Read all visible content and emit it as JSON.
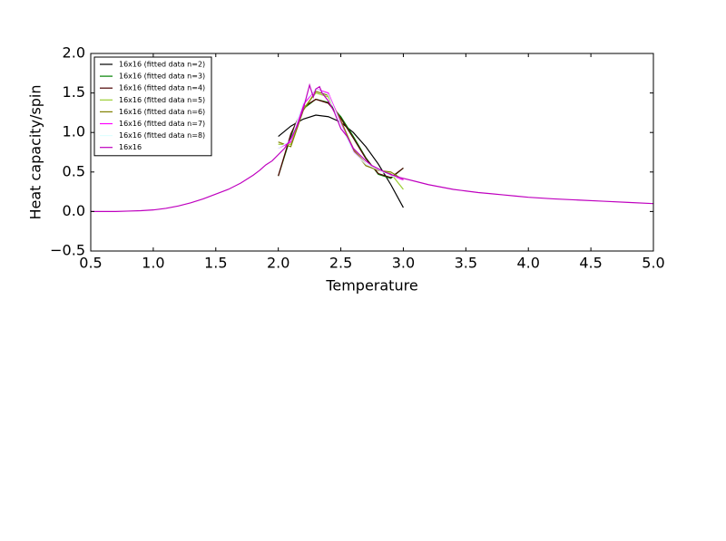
{
  "chart_data": {
    "type": "line",
    "x_label": "Temperature",
    "y_label": "Heat capacity/spin",
    "xlim": [
      0.5,
      5.0
    ],
    "ylim": [
      -0.5,
      2.0
    ],
    "xticks": [
      0.5,
      {
        "value": 1,
        "label": "1.0"
      },
      1.5,
      {
        "value": 2,
        "label": "2.0"
      },
      2.5,
      {
        "value": 3,
        "label": "3.0"
      },
      3.5,
      {
        "value": 4,
        "label": "4.0"
      },
      4.5,
      {
        "value": 5,
        "label": "5.0"
      }
    ],
    "yticks": [
      {
        "value": -0.5,
        "label": "−0.5"
      },
      {
        "value": 0,
        "label": "0.0"
      },
      0.5,
      {
        "value": 1,
        "label": "1.0"
      },
      1.5,
      {
        "value": 2,
        "label": "2.0"
      }
    ],
    "legend": "upper left",
    "series": [
      {
        "name": "16x16 (fitted data n=2)",
        "color": "#000000",
        "x": [
          2.0,
          2.1,
          2.2,
          2.3,
          2.4,
          2.5,
          2.6,
          2.7,
          2.8,
          2.9,
          3.0
        ],
        "values": [
          0.95,
          1.08,
          1.17,
          1.22,
          1.2,
          1.13,
          1.0,
          0.82,
          0.6,
          0.34,
          0.05
        ]
      },
      {
        "name": "16x16 (fitted data n=3)",
        "color": "#008000",
        "x": [
          2.0,
          2.1,
          2.2,
          2.3,
          2.4,
          2.5,
          2.6,
          2.7,
          2.8,
          2.9,
          3.0
        ],
        "values": [
          0.45,
          0.95,
          1.3,
          1.42,
          1.38,
          1.2,
          0.95,
          0.68,
          0.47,
          0.42,
          0.55
        ]
      },
      {
        "name": "16x16 (fitted data n=4)",
        "color": "#4b0000",
        "x": [
          2.0,
          2.1,
          2.2,
          2.3,
          2.4,
          2.5,
          2.6,
          2.7,
          2.8,
          2.9,
          3.0
        ],
        "values": [
          0.45,
          0.98,
          1.32,
          1.42,
          1.37,
          1.18,
          0.93,
          0.67,
          0.48,
          0.43,
          0.55
        ]
      },
      {
        "name": "16x16 (fitted data n=5)",
        "color": "#9acd32",
        "x": [
          2.0,
          2.1,
          2.2,
          2.3,
          2.4,
          2.5,
          2.6,
          2.7,
          2.8,
          2.9,
          3.0
        ],
        "values": [
          0.85,
          0.85,
          1.3,
          1.5,
          1.45,
          1.15,
          0.8,
          0.6,
          0.52,
          0.48,
          0.28
        ]
      },
      {
        "name": "16x16 (fitted data n=6)",
        "color": "#808000",
        "x": [
          2.0,
          2.1,
          2.2,
          2.3,
          2.4,
          2.5,
          2.6,
          2.7,
          2.8,
          2.9,
          3.0
        ],
        "values": [
          0.88,
          0.82,
          1.28,
          1.52,
          1.47,
          1.15,
          0.78,
          0.58,
          0.52,
          0.5,
          0.4
        ]
      },
      {
        "name": "16x16 (fitted data n=7)",
        "color": "#ff00ff",
        "x": [
          2.0,
          2.1,
          2.2,
          2.3,
          2.4,
          2.5,
          2.6,
          2.7,
          2.8,
          2.9,
          3.0
        ],
        "values": [
          0.8,
          0.88,
          1.35,
          1.55,
          1.5,
          1.12,
          0.76,
          0.6,
          0.53,
          0.46,
          0.4
        ]
      },
      {
        "name": "16x16 (fitted data n=8)",
        "color": "#e0ffff",
        "x": [
          2.0,
          2.1,
          2.2,
          2.3,
          2.4,
          2.5,
          2.6,
          2.7,
          2.8,
          2.9,
          3.0
        ],
        "values": [
          0.8,
          0.9,
          1.38,
          1.55,
          1.48,
          1.1,
          0.75,
          0.6,
          0.53,
          0.45,
          0.42
        ]
      },
      {
        "name": "16x16",
        "color": "#bf00bf",
        "x": [
          0.5,
          0.6,
          0.7,
          0.8,
          0.9,
          1.0,
          1.1,
          1.2,
          1.3,
          1.4,
          1.5,
          1.6,
          1.7,
          1.8,
          1.85,
          1.9,
          1.95,
          2.0,
          2.05,
          2.1,
          2.15,
          2.2,
          2.25,
          2.28,
          2.3,
          2.33,
          2.35,
          2.4,
          2.45,
          2.5,
          2.55,
          2.6,
          2.65,
          2.7,
          2.75,
          2.8,
          2.85,
          2.9,
          2.95,
          3.0,
          3.1,
          3.2,
          3.3,
          3.4,
          3.5,
          3.6,
          3.7,
          3.8,
          3.9,
          4.0,
          4.2,
          4.4,
          4.6,
          4.8,
          5.0
        ],
        "values": [
          0.0,
          0.0,
          0.0,
          0.005,
          0.01,
          0.02,
          0.04,
          0.07,
          0.11,
          0.16,
          0.22,
          0.28,
          0.36,
          0.46,
          0.52,
          0.59,
          0.64,
          0.72,
          0.8,
          0.92,
          1.08,
          1.3,
          1.6,
          1.45,
          1.55,
          1.58,
          1.5,
          1.4,
          1.25,
          1.05,
          0.95,
          0.8,
          0.72,
          0.64,
          0.58,
          0.54,
          0.5,
          0.47,
          0.44,
          0.42,
          0.38,
          0.34,
          0.31,
          0.28,
          0.26,
          0.24,
          0.225,
          0.21,
          0.195,
          0.18,
          0.16,
          0.145,
          0.13,
          0.115,
          0.1
        ]
      }
    ]
  }
}
